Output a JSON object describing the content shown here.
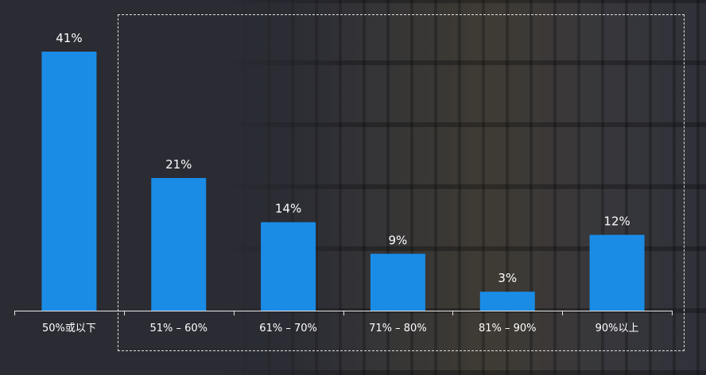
{
  "chart_data": {
    "type": "bar",
    "categories": [
      "50%或以下",
      "51% – 60%",
      "61% – 70%",
      "71% – 80%",
      "81% – 90%",
      "90%以上"
    ],
    "values": [
      41,
      21,
      14,
      9,
      3,
      12
    ],
    "value_labels": [
      "41%",
      "21%",
      "14%",
      "9%",
      "3%",
      "12%"
    ],
    "title": "",
    "xlabel": "",
    "ylabel": "",
    "ylim": [
      0,
      41
    ],
    "grid": false,
    "bar_color": "#1a8ce6",
    "highlight_box": "dashed frame around categories 2–6"
  }
}
